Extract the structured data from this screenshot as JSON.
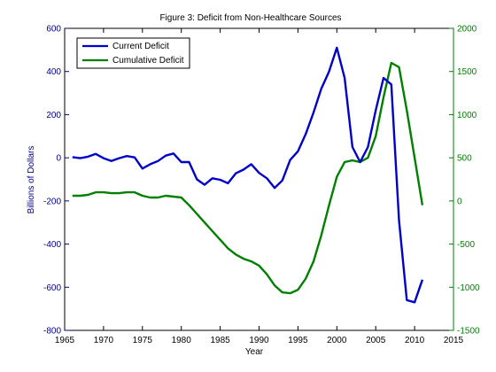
{
  "chart_data": {
    "type": "line",
    "title": "Figure 3: Deficit from Non-Healthcare Sources",
    "xlabel": "Year",
    "ylabel": "Billions of Dollars",
    "y2label": "",
    "xlim": [
      1965,
      2015
    ],
    "ylim": [
      -800,
      600
    ],
    "y2lim": [
      -1500,
      2000
    ],
    "xticks": [
      1965,
      1970,
      1975,
      1980,
      1985,
      1990,
      1995,
      2000,
      2005,
      2010,
      2015
    ],
    "yticks": [
      -800,
      -600,
      -400,
      -200,
      0,
      200,
      400,
      600
    ],
    "y2ticks": [
      -1500,
      -1000,
      -500,
      0,
      500,
      1000,
      1500,
      2000
    ],
    "grid": false,
    "legend": "top-left",
    "series": [
      {
        "name": "Current Deficit",
        "axis": "left",
        "color": "#0000cc",
        "x": [
          1966,
          1967,
          1968,
          1969,
          1970,
          1971,
          1972,
          1973,
          1974,
          1975,
          1976,
          1977,
          1978,
          1979,
          1980,
          1981,
          1982,
          1983,
          1984,
          1985,
          1986,
          1987,
          1988,
          1989,
          1990,
          1991,
          1992,
          1993,
          1994,
          1995,
          1996,
          1997,
          1998,
          1999,
          2000,
          2001,
          2002,
          2003,
          2004,
          2005,
          2006,
          2007,
          2008,
          2009,
          2010,
          2011
        ],
        "y": [
          3,
          -2,
          5,
          18,
          -2,
          -15,
          -2,
          8,
          2,
          -50,
          -30,
          -15,
          10,
          20,
          -20,
          -20,
          -100,
          -125,
          -95,
          -102,
          -118,
          -72,
          -55,
          -30,
          -70,
          -95,
          -140,
          -105,
          -10,
          30,
          110,
          210,
          320,
          400,
          510,
          370,
          50,
          -20,
          50,
          220,
          370,
          340,
          -290,
          -660,
          -670,
          -565
        ]
      },
      {
        "name": "Cumulative Deficit",
        "axis": "right",
        "color": "#008000",
        "x": [
          1966,
          1967,
          1968,
          1969,
          1970,
          1971,
          1972,
          1973,
          1974,
          1975,
          1976,
          1977,
          1978,
          1979,
          1980,
          1981,
          1982,
          1983,
          1984,
          1985,
          1986,
          1987,
          1988,
          1989,
          1990,
          1991,
          1992,
          1993,
          1994,
          1995,
          1996,
          1997,
          1998,
          1999,
          2000,
          2001,
          2002,
          2003,
          2004,
          2005,
          2006,
          2007,
          2008,
          2009,
          2010,
          2011
        ],
        "y": [
          60,
          60,
          70,
          100,
          100,
          90,
          90,
          100,
          100,
          60,
          40,
          40,
          60,
          50,
          40,
          -50,
          -150,
          -250,
          -350,
          -450,
          -550,
          -620,
          -670,
          -700,
          -750,
          -850,
          -980,
          -1060,
          -1070,
          -1030,
          -900,
          -700,
          -400,
          -50,
          280,
          450,
          470,
          450,
          500,
          750,
          1200,
          1600,
          1550,
          1050,
          500,
          -50
        ]
      }
    ]
  }
}
